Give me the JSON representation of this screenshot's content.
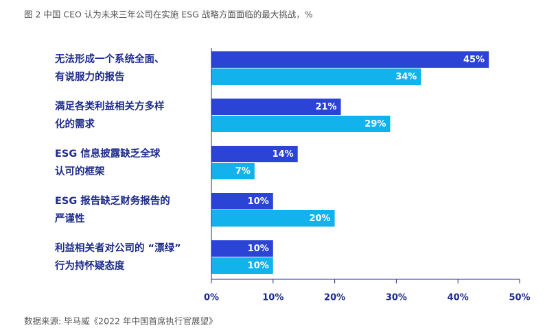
{
  "chart_data": {
    "type": "bar",
    "orientation": "horizontal",
    "title": "图 2 中国 CEO 认为未来三年公司在实施 ESG 战略方面面临的最大挑战，%",
    "source": "数据来源: 毕马威《2022 年中国首席执行官展望》",
    "categories": [
      "无法形成一个系统全面、\n有说服力的报告",
      "满足各类利益相关方多样\n化的需求",
      "ESG 信息披露缺乏全球\n认可的框架",
      "ESG 报告缺乏财务报告的\n严谨性",
      "利益相关者对公司的 “漂绿”\n行为持怀疑态度"
    ],
    "series": [
      {
        "color": "#2b44d6",
        "values": [
          45,
          21,
          14,
          10,
          10
        ],
        "value_labels": [
          "45%",
          "21%",
          "14%",
          "10%",
          "10%"
        ]
      },
      {
        "color": "#12b2ec",
        "values": [
          34,
          29,
          7,
          20,
          10
        ],
        "value_labels": [
          "34%",
          "29%",
          "7%",
          "20%",
          "10%"
        ]
      }
    ],
    "xlim": [
      0,
      50
    ],
    "xticks": [
      {
        "value": 0,
        "label": "0%"
      },
      {
        "value": 10,
        "label": "10%"
      },
      {
        "value": 20,
        "label": "20%"
      },
      {
        "value": 30,
        "label": "30%"
      },
      {
        "value": 40,
        "label": "40%"
      },
      {
        "value": 50,
        "label": "50%"
      }
    ]
  }
}
